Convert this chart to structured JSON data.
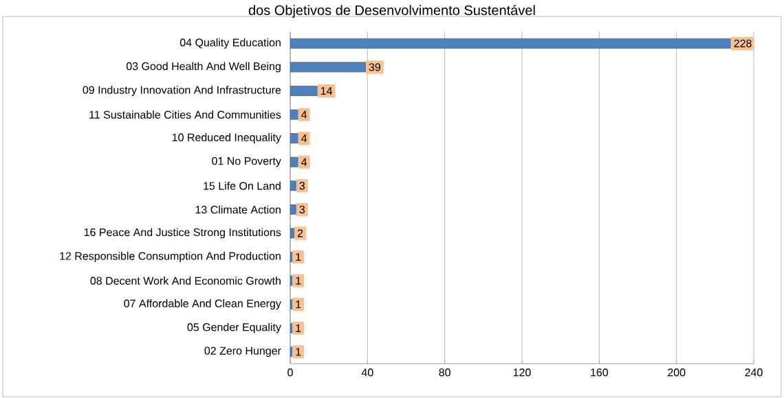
{
  "chart_data": {
    "type": "bar",
    "orientation": "horizontal",
    "title": "dos Objetivos de Desenvolvimento Sustentável",
    "categories": [
      "04 Quality Education",
      "03 Good Health And Well Being",
      "09 Industry Innovation And Infrastructure",
      "11 Sustainable Cities And Communities",
      "10 Reduced Inequality",
      "01 No Poverty",
      "15 Life On Land",
      "13 Climate Action",
      "16 Peace And Justice Strong Institutions",
      "12 Responsible Consumption And Production",
      "08 Decent Work And Economic Growth",
      "07 Affordable And Clean Energy",
      "05 Gender Equality",
      "02 Zero Hunger"
    ],
    "values": [
      228,
      39,
      14,
      4,
      4,
      4,
      3,
      3,
      2,
      1,
      1,
      1,
      1,
      1
    ],
    "color": "#4f81bd",
    "xlim": [
      0,
      240
    ],
    "xticks": [
      0,
      40,
      80,
      120,
      160,
      200,
      240
    ],
    "grid": "x",
    "data_labels": true
  }
}
